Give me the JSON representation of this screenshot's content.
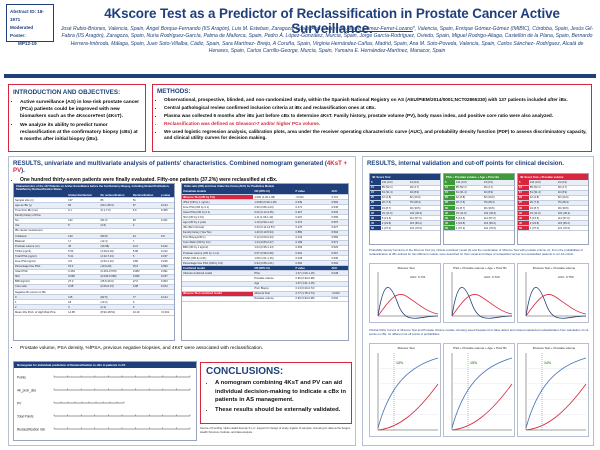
{
  "abstract": {
    "id_line": "Abstract ID: 18-1971",
    "moderated": "Moderated Poster:",
    "poster_no": "MP12-19"
  },
  "title": "4Kscore Test as a Predictor of Reclassification in Prostate Cancer Active Surveillance.",
  "authors_before": "José Rubio-Briones, Valencia, Spain, Ángel Borque-Fernando (IIS Aragón), Luis M. Esteban, Zaragoza, Spain, Ana Calatrava, ",
  "authors_highlight": "Álvaro Gómez-Ferrer-Lozano",
  "authors_after": "*, Valencia, Spain, Enrique Gómez-Gómez (IMIBIC), Córdoba, Spain, Jesús Gil-Fabra (IIS Aragón), Zaragoza, Spain, Nuria Rodríguez-García, Palma de Mallorca, Spain, Pedro Á. López-González, Murcia, Spain, Jorge García-Rodríguez, Oviedo, Spain, Miguel Rodrigo-Aliaga, Castellón de la Plana, Spain, Bernardo Herrera-Imbroda, Málaga, Spain, Juan Soto-Villalba, Cádiz, Spain, Sara Martínez- Breijo, A Coruña, Spain, Virginia Hernández-Cañas, Madrid, Spain, Ana M. Soto-Poveda, Valencia, Spain, Carlos Sánchez- Rodríguez, Alcalá de Henares, Spain, Carlos Carrillo-George, Murcia, Spain, Yumaira E. Hernández-Martínez, Manacor, Spain",
  "intro": {
    "title": "INTRODUCTION AND OBJECTIVES:",
    "bullets": [
      "Active surveillance (AS) in low-risk prostate cancer (PCa) patients could be improved with new biomarkers such as the 4KscoreTest (4KsT).",
      "We analyze its ability to predict tumor reclassification at the confirmatory biopsy (cBx) at 6 months after initial biopsy (iBx)."
    ]
  },
  "methods": {
    "title": "METHODS:",
    "bullets": [
      "Observational, prospective, blinded, and non-randomized study, within the Spanish National Registry on AS (AEU/PIEM/2014/0001;NCT02865330) with 137 patients included after iBx.",
      "Central pathological review confirmed inclusion criteria at iBx and reclassification ones at cBx.",
      "Plasma was collected 6 months after iBx just before cBx to determine 4KsT. Family history, prostate volume (PV), body mass index, and positive core ratio were also analyzed."
    ],
    "red_bullet": "Reclassification was defined as Gleason>7 and/or higher PCa volume.",
    "last_bullet": "We used logistic regression analysis, calibration plots, area under the receiver operating characteristic curve (AUC), and probability density function (PDF) to assess discriminatory capacity, and clinical utility curves for decision making."
  },
  "results_left": {
    "title_before": "RESULTS, univariate and multivariate analysis of patients' characteristics. Combined nomogram generated (",
    "title_red": "4KsT + PV",
    "title_after": ").",
    "bullet1": "One hundred thirty-seven patients were finally evaluated. Fifty-one patients (37.2%) were reclassified at cBx.",
    "table1_caption": "Characteristics of the 137 Patients on Active Surveillance before the Confirmatory Biopsy, including Global Distribution, Stratified by Reclassification Status",
    "table1_rows": [
      [
        "",
        "Global distribution",
        "No reclassification",
        "Reclassification",
        "p value"
      ],
      [
        "Sample size (n)",
        "137",
        "86",
        "51",
        ""
      ],
      [
        "Age at cBx (y)",
        "66",
        "(60.1-68.3)",
        "67",
        "0.124"
      ],
      [
        "Time from iBx (mo)",
        "6.1",
        "(6.1-7.0)",
        "6.9",
        "0.455"
      ],
      [
        "Family history of PCa",
        "",
        "",
        "",
        ""
      ],
      [
        "  No",
        "132",
        "(81.6)",
        "84",
        "0.341"
      ],
      [
        "  Yes",
        "5",
        "(3.6)",
        "2",
        ""
      ],
      [
        "iBx cancer involvement",
        "",
        "",
        "",
        ""
      ],
      [
        "  Unilateral",
        "120",
        "(80.8)",
        "44",
        "0.8"
      ],
      [
        "  Bilateral",
        "17",
        "(12.4)",
        "7",
        ""
      ],
      [
        "Prostate volume (cc)",
        "45",
        "(33-58)",
        "41.0",
        "0.012"
      ],
      [
        "TPSA (ng/ml)",
        "5.54",
        "(4.29-6.19)",
        "5.08",
        "0.212"
      ],
      [
        "Total fPSA (ng/ml)",
        "5.31",
        "(4.33-7.04)",
        "5",
        "0.157"
      ],
      [
        "Free PSA (ng/ml)",
        "0.8",
        "(0.53-1.10)",
        "0.86",
        "0.195"
      ],
      [
        "Percentage free PSA",
        "15.4",
        "(10.9-20)",
        "15.9",
        "0.093"
      ],
      [
        "Intact PSA",
        "0.404",
        "(0.261-0.579)",
        "0.383",
        "0.091"
      ],
      [
        "hK2",
        "0.066",
        "(0.046-0.096)",
        "0.066",
        "0.157"
      ],
      [
        "BMI (kg/m2)",
        "27.3",
        "(25.5-30.0)",
        "27.6",
        "0.003"
      ],
      [
        "Core ratio",
        "0.08",
        "(0.06-0.13)",
        "0.08",
        "0.104"
      ],
      [
        "Negative Bx proven in iBx",
        "",
        "",
        "",
        ""
      ],
      [
        "  0",
        "115",
        "(82.5)",
        "77",
        "0.124"
      ],
      [
        "  1",
        "18",
        "(13.2)",
        "9",
        ""
      ],
      [
        "  2",
        "3",
        "(2.2)",
        "3",
        ""
      ],
      [
        "Mean 4Ks Prob. of High Risk PCa",
        "14.95",
        "(8.93-18.51)",
        "13.19",
        "<0.001"
      ]
    ],
    "table2_caption": "Odds ratio (OR) and Area Under the Curve (AUC) for Predictive Models",
    "table2_rows": [
      [
        "Univariate models",
        "OR (95% CI)",
        "P value",
        "AUC"
      ],
      [
        "4Kscore Test (OR by 1%)",
        "1.060 (1.20-1.98)",
        "<0.001",
        "0.721"
      ],
      [
        "tPSA (OR by 1 ng/mL)",
        "1.0039 (0.99-1.28)",
        "0.039",
        "0.584"
      ],
      [
        "Free PSA (OR by 0.1)",
        "0.90 (0.89-1.03)",
        "0.171",
        "0.546"
      ],
      [
        "Intact PSA (OR by 0.1)",
        "0.02 (0.14-3.45)",
        "0.327",
        "0.532"
      ],
      [
        "hK2 (OR by 0.01)",
        "1.11 (1.09-1.32)",
        "0.207",
        "0.599"
      ],
      [
        "Age (OR by 1 year)",
        "1.10 (0.99-1.12)",
        "0.074",
        "0.597"
      ],
      [
        "cBx (Bx1 Normal)",
        "2.23 (0.11-14.57)",
        "0.275",
        "0.527"
      ],
      [
        "Family history (Yes/ No)",
        "1.20 (0.19-5.94)",
        "0.850",
        "0.504"
      ],
      [
        "Prior Biopsy(OR 1)",
        "0.12 (0.00-0.43)",
        "0.013",
        "0.582"
      ],
      [
        "Core Ratio (OR by 0.1)",
        "1.44 (0.84-2.27)",
        "0.169",
        "0.571"
      ],
      [
        "BMI (OR by 1 kg/m2)",
        "1.04 (0.95-1.14)",
        "0.453",
        "0.526"
      ],
      [
        "Prostate volume (OR by 1 mL)",
        "0.97 (0.96-0.99)",
        "0.001",
        "0.667"
      ],
      [
        "PSAD (OR by 0.01)",
        "1.08 (1.01-1.16)",
        "0.018",
        "0.630"
      ],
      [
        "Percentage free PSA (OR by 1%)",
        "0.94 (0.88-1.01)",
        "0.062",
        "0.592"
      ],
      [
        "Combined model",
        "OR (95% CI)",
        "P value",
        "AUC"
      ],
      [
        "Clinical combined model",
        "PSA",
        "1.07 (1.00-1.15)",
        "0.038"
      ],
      [
        "",
        "Prostate volume",
        "0.96 (0.94-0.98)",
        ""
      ],
      [
        "",
        "Age",
        "1.07 (1.01-1.15)",
        ""
      ],
      [
        "",
        "Prior Biopsy",
        "0.13 (0.00-0.72)",
        ""
      ],
      [
        "4Kscore Test combined model",
        "4Kscore Test",
        "2.77 (1.78-4.74)",
        "<0.001"
      ],
      [
        "",
        "Prostate volume",
        "0.96 (0.94-0.98)",
        "0.002"
      ]
    ],
    "bullet2": "Prostate volume, PSA density, %fPSA, previous negative biopsies, and 4KsT were associated with reclassification.",
    "nomogram_caption": "Nomogram for individual prediction of Reclassification to cBx in patients in AS",
    "nomogram_rows": [
      "Points",
      "4K_prob_cBx",
      "PV",
      "Total Points",
      "Reclassification risk"
    ]
  },
  "conclusions": {
    "title": "CONCLUSIONS:",
    "bullets": [
      "A nomogram combining 4KsT and PV can aid individual decision-making to indicate a cBx in patients in AS management.",
      "These results should be externally validated."
    ]
  },
  "source_note": "Source of Funding: Opko Health Europe S.L.U. support for design of study, logistic of samples, licensing for data at the Aragon Health Sciences Institute, and data analysis.",
  "results_right": {
    "title": "RESULTS, internal validation and cut-off points for clinical decision.",
    "cutoff_tables": [
      {
        "header": "4K Score Test",
        "color": "#1f3f7a"
      },
      {
        "header": "PSA + Prostate volume + Age + Prior Bx",
        "color": "#3f9a3a"
      },
      {
        "header": "4K Score Test + Prostate volume",
        "color": "#d7263d"
      }
    ],
    "cutoff_rows": [
      [
        "5",
        "131 (0.0)",
        "13 (0.0)"
      ],
      [
        "10",
        "85 (52.1)",
        "29 (4.7)"
      ],
      [
        "15",
        "61 (31.4)",
        "40 (8.9)"
      ],
      [
        "20",
        "42 (2.8)",
        "52 (20.0)"
      ],
      [
        "25",
        "20 (7.6)",
        "79 (28.4)"
      ],
      [
        "30",
        "19 (8.7)",
        "93 (39.5)"
      ],
      [
        "35",
        "15 (11.6)",
        "102 (49.3)"
      ],
      [
        "40",
        "5 (13.6)",
        "111 (57.0)"
      ],
      [
        "45",
        "2 (23.8)",
        "115 (65.2)"
      ],
      [
        "50",
        "1 (37.2)",
        "121 (70.0)"
      ]
    ],
    "pdf_caption": "Probability density functions of the 4Kscore Test (a), clinical combined model (b) and the combination of 4Kscore Test with prostate volume (c). From the probabilities of reclassification at cBx defined for two different models, were described for their visual and shape of reclassified versus non-reclassified patients in our AS cohort.",
    "pdf_labels": [
      "4Kscore Test",
      "PSA + Prostate volume + Age + Prior Bx",
      "4Kscore Test + Prostate volume"
    ],
    "auc_labels": [
      "AUC: 0.731",
      "AUC: 0.720",
      "AUC: 0.750"
    ],
    "utility_caption": "Clinical Utility Curves of 4Kscore Test and Prostate Volume models, showing saved biopsies from false detect and missed undetected reclassification from calculation of cut points on cBx, for different cut-off points of probabilities.",
    "utility_labels": [
      "4Kscore Test",
      "PSA + Prostate volume + Age + Prior Bx",
      "4Kscore Test + Prostate volume"
    ],
    "utility_pct": [
      "13%",
      "15%",
      "14%"
    ]
  }
}
